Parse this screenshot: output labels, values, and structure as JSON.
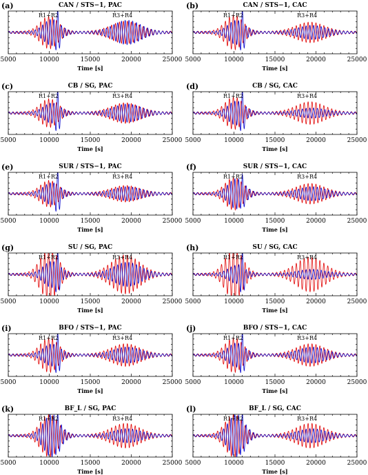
{
  "colors": {
    "red": "#e00000",
    "blue": "#0000cc",
    "axis": "#000000"
  },
  "chart_data": [
    {
      "type": "line",
      "label": "(a)",
      "title": "CAN / STS−1, PAC",
      "xlabel": "Time [s]",
      "xlim": [
        5000,
        25000
      ],
      "xticks": [
        "5000",
        "10000",
        "15000",
        "20000",
        "25000"
      ],
      "annotations": [
        "R1+R2",
        "R3+R4"
      ],
      "amp": {
        "red": 0.75,
        "blue": 0.6,
        "blue_spike": 1.2,
        "red2": 0.5,
        "blue2": 0.55
      }
    },
    {
      "type": "line",
      "label": "(b)",
      "title": "CAN / STS−1, CAC",
      "xlabel": "Time [s]",
      "xlim": [
        5000,
        25000
      ],
      "xticks": [
        "5000",
        "10000",
        "15000",
        "20000",
        "25000"
      ],
      "annotations": [
        "R1+R2",
        "R3+R4"
      ],
      "amp": {
        "red": 0.8,
        "blue": 0.55,
        "blue_spike": 1.2,
        "red2": 0.45,
        "blue2": 0.3
      }
    },
    {
      "type": "line",
      "label": "(c)",
      "title": "CB / SG, PAC",
      "xlabel": "Time [s]",
      "xlim": [
        5000,
        25000
      ],
      "xticks": [
        "5000",
        "10000",
        "15000",
        "20000",
        "25000"
      ],
      "annotations": [
        "R1+R2",
        "R3+R4"
      ],
      "amp": {
        "red": 0.65,
        "blue": 0.45,
        "blue_spike": 1.2,
        "red2": 0.45,
        "blue2": 0.4
      }
    },
    {
      "type": "line",
      "label": "(d)",
      "title": "CB / SG, CAC",
      "xlabel": "Time [s]",
      "xlim": [
        5000,
        25000
      ],
      "xticks": [
        "5000",
        "10000",
        "15000",
        "20000",
        "25000"
      ],
      "annotations": [
        "R1+R2",
        "R3+R4"
      ],
      "amp": {
        "red": 0.75,
        "blue": 0.55,
        "blue_spike": 1.2,
        "red2": 0.5,
        "blue2": 0.2
      }
    },
    {
      "type": "line",
      "label": "(e)",
      "title": "SUR / STS−1, PAC",
      "xlabel": "Time [s]",
      "xlim": [
        5000,
        25000
      ],
      "xticks": [
        "5000",
        "10000",
        "15000",
        "20000",
        "25000"
      ],
      "annotations": [
        "R1+R2",
        "R3+R4"
      ],
      "amp": {
        "red": 0.6,
        "blue": 0.5,
        "blue_spike": 1.2,
        "red2": 0.35,
        "blue2": 0.3
      }
    },
    {
      "type": "line",
      "label": "(f)",
      "title": "SUR / STS−1, CAC",
      "xlabel": "Time [s]",
      "xlim": [
        5000,
        25000
      ],
      "xticks": [
        "5000",
        "10000",
        "15000",
        "20000",
        "25000"
      ],
      "annotations": [
        "R1+R2",
        "R3+R4"
      ],
      "amp": {
        "red": 0.75,
        "blue": 0.7,
        "blue_spike": 1.0,
        "red2": 0.45,
        "blue2": 0.3
      }
    },
    {
      "type": "line",
      "label": "(g)",
      "title": "SU / SG, PAC",
      "xlabel": "Time [s]",
      "xlim": [
        5000,
        25000
      ],
      "xticks": [
        "5000",
        "10000",
        "15000",
        "20000",
        "25000"
      ],
      "annotations": [
        "R1+R2",
        "R3+R4"
      ],
      "amp": {
        "red": 1.2,
        "blue": 0.6,
        "blue_spike": 1.2,
        "red2": 0.9,
        "blue2": 0.55
      }
    },
    {
      "type": "line",
      "label": "(h)",
      "title": "SU / SG, CAC",
      "xlabel": "Time [s]",
      "xlim": [
        5000,
        25000
      ],
      "xticks": [
        "5000",
        "10000",
        "15000",
        "20000",
        "25000"
      ],
      "annotations": [
        "R1+R2",
        "R3+R4"
      ],
      "amp": {
        "red": 1.2,
        "blue": 0.4,
        "blue_spike": 1.2,
        "red2": 0.8,
        "blue2": 0.2
      }
    },
    {
      "type": "line",
      "label": "(i)",
      "title": "BFO / STS−1, PAC",
      "xlabel": "Time [s]",
      "xlim": [
        5000,
        25000
      ],
      "xticks": [
        "5000",
        "10000",
        "15000",
        "20000",
        "25000"
      ],
      "annotations": [
        "R1+R2",
        "R3+R4"
      ],
      "amp": {
        "red": 0.8,
        "blue": 0.5,
        "blue_spike": 1.2,
        "red2": 0.5,
        "blue2": 0.35
      }
    },
    {
      "type": "line",
      "label": "(j)",
      "title": "BFO / STS−1, CAC",
      "xlabel": "Time [s]",
      "xlim": [
        5000,
        25000
      ],
      "xticks": [
        "5000",
        "10000",
        "15000",
        "20000",
        "25000"
      ],
      "annotations": [
        "R1+R2",
        "R3+R4"
      ],
      "amp": {
        "red": 0.8,
        "blue": 0.55,
        "blue_spike": 1.2,
        "red2": 0.5,
        "blue2": 0.35
      }
    },
    {
      "type": "line",
      "label": "(k)",
      "title": "BF_L / SG, PAC",
      "xlabel": "Time [s]",
      "xlim": [
        5000,
        25000
      ],
      "xticks": [
        "5000",
        "10000",
        "15000",
        "20000",
        "25000"
      ],
      "annotations": [
        "R1+R2",
        "R3+R4"
      ],
      "amp": {
        "red": 1.0,
        "blue": 1.0,
        "blue_spike": 1.2,
        "red2": 0.55,
        "blue2": 0.3
      }
    },
    {
      "type": "line",
      "label": "(l)",
      "title": "BF_L / SG, CAC",
      "xlabel": "Time [s]",
      "xlim": [
        5000,
        25000
      ],
      "xticks": [
        "5000",
        "10000",
        "15000",
        "20000",
        "25000"
      ],
      "annotations": [
        "R1+R2",
        "R3+R4"
      ],
      "amp": {
        "red": 1.0,
        "blue": 1.0,
        "blue_spike": 1.2,
        "red2": 0.55,
        "blue2": 0.3
      }
    }
  ]
}
